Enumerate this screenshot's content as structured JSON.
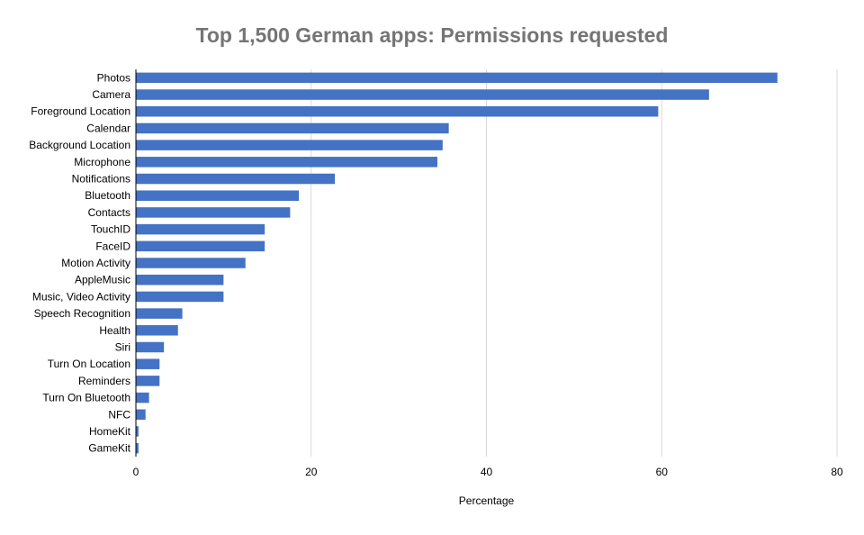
{
  "chart_data": {
    "type": "bar",
    "orientation": "horizontal",
    "title": "Top 1,500 German apps: Permissions requested",
    "xlabel": "Percentage",
    "ylabel": "",
    "xlim": [
      0,
      80
    ],
    "xticks": [
      0,
      20,
      40,
      60,
      80
    ],
    "grid": "vertical",
    "legend": "none",
    "categories": [
      "Photos",
      "Camera",
      "Foreground Location",
      "Calendar",
      "Background Location",
      "Microphone",
      "Notifications",
      "Bluetooth",
      "Contacts",
      "TouchID",
      "FaceID",
      "Motion Activity",
      "AppleMusic",
      "Music, Video Activity",
      "Speech Recognition",
      "Health",
      "Siri",
      "Turn On Location",
      "Reminders",
      "Turn On Bluetooth",
      "NFC",
      "HomeKit",
      "GameKit"
    ],
    "values": [
      73.2,
      65.4,
      59.6,
      35.7,
      35.0,
      34.4,
      22.7,
      18.6,
      17.6,
      14.7,
      14.7,
      12.5,
      10.0,
      10.0,
      5.3,
      4.8,
      3.2,
      2.7,
      2.7,
      1.5,
      1.1,
      0.3,
      0.3
    ],
    "colors": {
      "bar": "#4472c4",
      "grid": "#d9d9d9",
      "axis": "#000000",
      "title": "#757575"
    }
  }
}
